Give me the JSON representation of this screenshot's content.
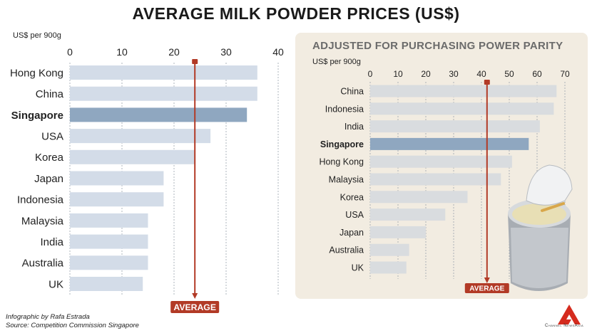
{
  "title": "AVERAGE MILK POWDER PRICES (US$)",
  "credits": {
    "infographic": "Infographic by Rafa Estrada",
    "source": "Source: Competition Commission Singapore"
  },
  "logo": {
    "text": "Channel NewsAsia",
    "color": "#d52b1e"
  },
  "colors": {
    "bar": "#d3dce8",
    "bar_highlight": "#8fa7c0",
    "bar_right": "#d9dcdf",
    "bar_right_highlight": "#8fa7c0",
    "average": "#b23a26",
    "panel": "#f2ece1"
  },
  "chart_data": [
    {
      "type": "bar",
      "orientation": "horizontal",
      "unit_label": "US$ per 900g",
      "categories": [
        "Hong Kong",
        "China",
        "Singapore",
        "USA",
        "Korea",
        "Japan",
        "Indonesia",
        "Malaysia",
        "India",
        "Australia",
        "UK"
      ],
      "values": [
        36,
        36,
        34,
        27,
        24,
        18,
        18,
        15,
        15,
        15,
        14
      ],
      "highlight": "Singapore",
      "xlim": [
        0,
        40
      ],
      "ticks": [
        "0",
        "10",
        "20",
        "30",
        "40"
      ],
      "average": {
        "label": "AVERAGE",
        "value": 24
      },
      "grid": true
    },
    {
      "type": "bar",
      "orientation": "horizontal",
      "title": "ADJUSTED FOR PURCHASING POWER PARITY",
      "unit_label": "US$ per 900g",
      "categories": [
        "China",
        "Indonesia",
        "India",
        "Singapore",
        "Hong Kong",
        "Malaysia",
        "Korea",
        "USA",
        "Japan",
        "Australia",
        "UK"
      ],
      "values": [
        67,
        66,
        61,
        57,
        51,
        47,
        35,
        27,
        20,
        14,
        13
      ],
      "highlight": "Singapore",
      "xlim": [
        0,
        70
      ],
      "ticks": [
        "0",
        "10",
        "20",
        "30",
        "40",
        "50",
        "60",
        "70"
      ],
      "average": {
        "label": "AVERAGE",
        "value": 42
      },
      "grid": true
    }
  ]
}
